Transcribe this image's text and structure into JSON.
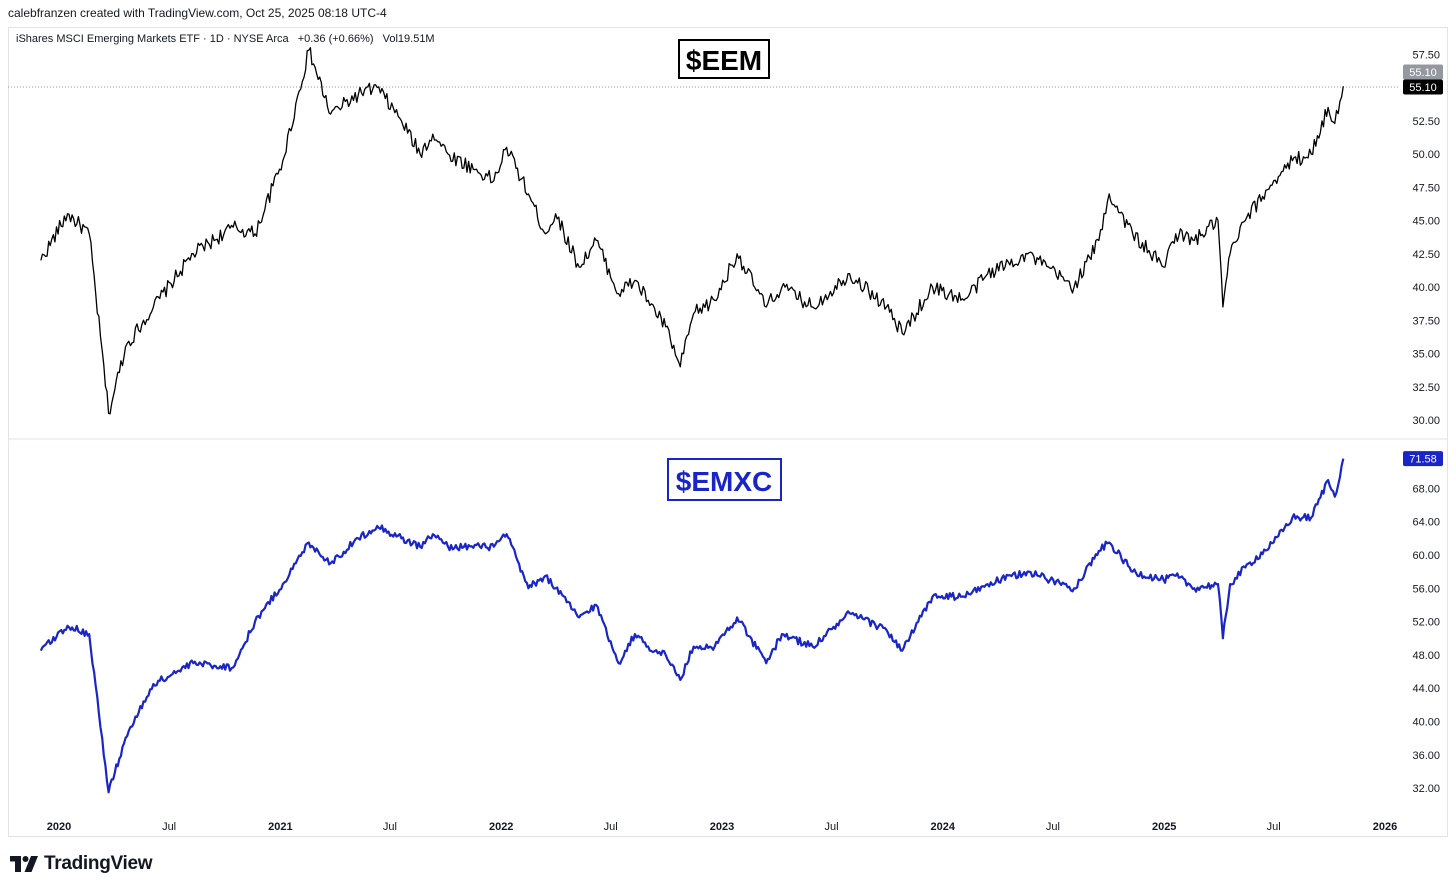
{
  "header": {
    "credit": "calebfranzen created with TradingView.com, Oct 25, 2025 08:18 UTC-4"
  },
  "legend": {
    "symbol": "iShares MSCI Emerging Markets ETF · 1D · NYSE Arca",
    "change": "+0.36 (+0.66%)",
    "volume_label": "Vol",
    "volume": "19.51M"
  },
  "footer": {
    "brand": "TradingView",
    "logo_icon": "tradingview-logo-icon"
  },
  "colors": {
    "eem": "#000000",
    "emxc": "#1a25c8",
    "axis_text": "#131722",
    "grid": "#e0e3eb"
  },
  "chart_data": [
    {
      "type": "line",
      "title": "$EEM",
      "ylim": [
        29.5,
        58.5
      ],
      "yticks": [
        "57.50",
        "52.50",
        "50.00",
        "47.50",
        "45.00",
        "42.50",
        "40.00",
        "37.50",
        "35.00",
        "32.50",
        "30.00"
      ],
      "price_badges": [
        "55.10",
        "55.10"
      ],
      "last_value": 55.1,
      "x_dates": [
        "2019-12-02",
        "2020-01-15",
        "2020-02-20",
        "2020-03-23",
        "2020-04-20",
        "2020-06-05",
        "2020-08-10",
        "2020-10-15",
        "2020-11-20",
        "2021-01-05",
        "2021-02-17",
        "2021-03-25",
        "2021-05-10",
        "2021-06-10",
        "2021-07-20",
        "2021-08-20",
        "2021-09-10",
        "2021-10-05",
        "2021-12-20",
        "2022-01-10",
        "2022-02-15",
        "2022-03-15",
        "2022-04-01",
        "2022-05-10",
        "2022-06-07",
        "2022-07-14",
        "2022-08-10",
        "2022-09-01",
        "2022-09-30",
        "2022-10-24",
        "2022-11-15",
        "2022-12-20",
        "2023-01-26",
        "2023-03-15",
        "2023-04-10",
        "2023-05-31",
        "2023-07-31",
        "2023-09-30",
        "2023-10-26",
        "2023-12-15",
        "2024-02-05",
        "2024-03-15",
        "2024-05-20",
        "2024-08-05",
        "2024-09-15",
        "2024-10-02",
        "2024-11-10",
        "2024-12-31",
        "2025-01-20",
        "2025-02-20",
        "2025-03-31",
        "2025-04-08",
        "2025-04-20",
        "2025-05-15",
        "2025-07-01",
        "2025-08-01",
        "2025-09-01",
        "2025-09-29",
        "2025-10-10",
        "2025-10-24"
      ],
      "values": [
        42.0,
        45.5,
        44.0,
        30.5,
        35.5,
        38.5,
        42.5,
        44.5,
        44.0,
        49.5,
        57.8,
        53.0,
        54.5,
        55.0,
        52.5,
        50.0,
        51.5,
        50.0,
        48.0,
        50.5,
        47.0,
        44.0,
        45.5,
        41.5,
        43.5,
        39.5,
        40.5,
        39.0,
        37.0,
        34.0,
        38.0,
        39.0,
        42.5,
        38.5,
        40.0,
        38.5,
        41.0,
        38.5,
        36.5,
        40.0,
        39.0,
        41.0,
        42.5,
        40.0,
        43.5,
        47.0,
        44.0,
        41.5,
        44.0,
        43.5,
        45.0,
        38.5,
        42.5,
        45.0,
        48.0,
        49.5,
        50.0,
        53.5,
        52.3,
        55.1
      ]
    },
    {
      "type": "line",
      "title": "$EMXC",
      "ylim": [
        30.5,
        73.0
      ],
      "yticks": [
        "68.00",
        "64.00",
        "60.00",
        "56.00",
        "52.00",
        "48.00",
        "44.00",
        "40.00",
        "36.00",
        "32.00"
      ],
      "price_badges": [
        "71.58"
      ],
      "last_value": 71.58,
      "x_dates": [
        "2019-12-02",
        "2020-01-15",
        "2020-02-20",
        "2020-03-23",
        "2020-04-20",
        "2020-06-05",
        "2020-08-10",
        "2020-10-15",
        "2020-11-20",
        "2021-01-05",
        "2021-02-17",
        "2021-03-25",
        "2021-05-10",
        "2021-06-10",
        "2021-07-20",
        "2021-08-20",
        "2021-09-10",
        "2021-10-05",
        "2021-12-20",
        "2022-01-10",
        "2022-02-15",
        "2022-03-15",
        "2022-04-01",
        "2022-05-10",
        "2022-06-07",
        "2022-07-14",
        "2022-08-10",
        "2022-09-01",
        "2022-09-30",
        "2022-10-24",
        "2022-11-15",
        "2022-12-20",
        "2023-01-26",
        "2023-03-15",
        "2023-04-10",
        "2023-05-31",
        "2023-07-31",
        "2023-09-30",
        "2023-10-26",
        "2023-12-15",
        "2024-02-05",
        "2024-03-15",
        "2024-05-20",
        "2024-08-05",
        "2024-09-15",
        "2024-10-02",
        "2024-11-10",
        "2024-12-31",
        "2025-01-20",
        "2025-02-20",
        "2025-03-31",
        "2025-04-08",
        "2025-04-20",
        "2025-05-15",
        "2025-07-01",
        "2025-08-01",
        "2025-09-01",
        "2025-09-29",
        "2025-10-10",
        "2025-10-24"
      ],
      "values": [
        48.5,
        51.5,
        50.5,
        31.5,
        38.0,
        44.5,
        47.0,
        46.5,
        52.0,
        56.5,
        61.5,
        59.0,
        62.0,
        63.5,
        62.0,
        61.0,
        62.5,
        61.0,
        61.0,
        62.5,
        56.0,
        57.5,
        56.0,
        52.5,
        54.0,
        47.0,
        50.5,
        49.0,
        48.0,
        45.0,
        49.0,
        49.0,
        52.5,
        47.0,
        50.5,
        49.0,
        53.0,
        51.0,
        48.5,
        55.0,
        55.0,
        56.5,
        58.0,
        56.0,
        60.5,
        61.5,
        58.0,
        57.0,
        57.5,
        56.0,
        56.5,
        50.0,
        56.5,
        58.5,
        61.5,
        64.5,
        64.5,
        69.0,
        67.0,
        71.58
      ]
    }
  ],
  "x_axis": {
    "ticks": [
      {
        "date": "2020-01-01",
        "label": "2020",
        "major": true
      },
      {
        "date": "2020-07-01",
        "label": "Jul",
        "major": false
      },
      {
        "date": "2021-01-01",
        "label": "2021",
        "major": true
      },
      {
        "date": "2021-07-01",
        "label": "Jul",
        "major": false
      },
      {
        "date": "2022-01-01",
        "label": "2022",
        "major": true
      },
      {
        "date": "2022-07-01",
        "label": "Jul",
        "major": false
      },
      {
        "date": "2023-01-01",
        "label": "2023",
        "major": true
      },
      {
        "date": "2023-07-01",
        "label": "Jul",
        "major": false
      },
      {
        "date": "2024-01-01",
        "label": "2024",
        "major": true
      },
      {
        "date": "2024-07-01",
        "label": "Jul",
        "major": false
      },
      {
        "date": "2025-01-01",
        "label": "2025",
        "major": true
      },
      {
        "date": "2025-07-01",
        "label": "Jul",
        "major": false
      },
      {
        "date": "2026-01-01",
        "label": "2026",
        "major": true
      }
    ]
  }
}
